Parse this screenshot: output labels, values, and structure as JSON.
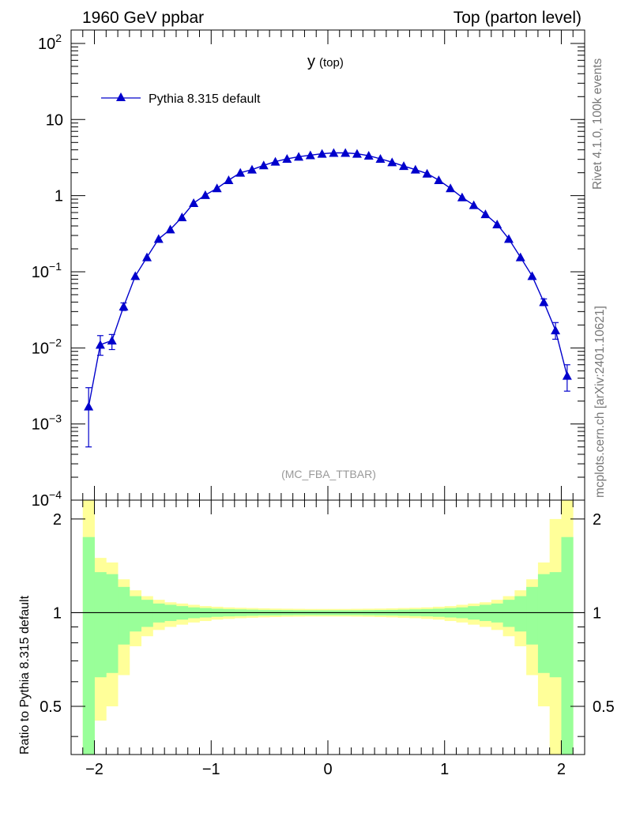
{
  "header": {
    "left": "1960 GeV ppbar",
    "right": "Top (parton level)"
  },
  "side_labels": {
    "rivet": "Rivet 4.1.0,  100k events",
    "mcplots": "mcplots.cern.ch [arXiv:2401.10621]"
  },
  "chart_data": [
    {
      "panel": "main",
      "type": "line",
      "title": "y",
      "title_sub": "(top)",
      "analysis_label": "(MC_FBA_TTBAR)",
      "yscale": "log",
      "ylim": [
        0.0001,
        150
      ],
      "xlim": [
        -2.2,
        2.2
      ],
      "ytick_labels": [
        "10",
        "2",
        "10",
        "1",
        "10",
        "−1",
        "10",
        "−2",
        "10",
        "−3",
        "10",
        "−4"
      ],
      "ytick_values": [
        100,
        10,
        1,
        0.1,
        0.01,
        0.001,
        0.0001
      ],
      "legend": {
        "label": "Pythia 8.315 default",
        "position": "top-left",
        "color": "#0000cc"
      },
      "series": [
        {
          "name": "Pythia 8.315 default",
          "color": "#0000cc",
          "marker": "triangle",
          "x": [
            -2.05,
            -1.95,
            -1.85,
            -1.75,
            -1.65,
            -1.55,
            -1.45,
            -1.35,
            -1.25,
            -1.15,
            -1.05,
            -0.95,
            -0.85,
            -0.75,
            -0.65,
            -0.55,
            -0.45,
            -0.35,
            -0.25,
            -0.15,
            -0.05,
            0.05,
            0.15,
            0.25,
            0.35,
            0.45,
            0.55,
            0.65,
            0.75,
            0.85,
            0.95,
            1.05,
            1.15,
            1.25,
            1.35,
            1.45,
            1.55,
            1.65,
            1.75,
            1.85,
            1.95,
            2.05
          ],
          "y": [
            0.0017,
            0.011,
            0.0125,
            0.035,
            0.088,
            0.155,
            0.27,
            0.36,
            0.52,
            0.8,
            1.02,
            1.25,
            1.6,
            2.0,
            2.2,
            2.5,
            2.8,
            3.05,
            3.25,
            3.4,
            3.55,
            3.65,
            3.65,
            3.55,
            3.35,
            3.05,
            2.75,
            2.45,
            2.2,
            1.95,
            1.6,
            1.25,
            0.95,
            0.75,
            0.57,
            0.42,
            0.27,
            0.155,
            0.088,
            0.04,
            0.017,
            0.0043
          ],
          "yerr_low": [
            0.0012,
            0.003,
            0.003,
            0.004,
            0.006,
            0.009,
            0.013,
            0.016,
            0.02,
            0.025,
            0.03,
            0.035,
            0.04,
            0.045,
            0.05,
            0.05,
            0.055,
            0.06,
            0.06,
            0.06,
            0.06,
            0.06,
            0.06,
            0.06,
            0.06,
            0.055,
            0.05,
            0.05,
            0.045,
            0.045,
            0.04,
            0.035,
            0.03,
            0.025,
            0.02,
            0.016,
            0.013,
            0.009,
            0.006,
            0.004,
            0.004,
            0.0016
          ],
          "yerr_high": [
            0.0013,
            0.0035,
            0.0025,
            0.004,
            0.006,
            0.009,
            0.013,
            0.016,
            0.02,
            0.025,
            0.03,
            0.035,
            0.04,
            0.045,
            0.05,
            0.05,
            0.055,
            0.06,
            0.06,
            0.06,
            0.06,
            0.06,
            0.06,
            0.06,
            0.06,
            0.055,
            0.05,
            0.05,
            0.045,
            0.045,
            0.04,
            0.035,
            0.03,
            0.025,
            0.02,
            0.016,
            0.013,
            0.009,
            0.006,
            0.004,
            0.0045,
            0.0017
          ]
        }
      ]
    },
    {
      "panel": "ratio",
      "type": "area",
      "ylabel": "Ratio to Pythia 8.315 default",
      "yscale": "log",
      "ylim": [
        0.35,
        2.3
      ],
      "xlim": [
        -2.2,
        2.2
      ],
      "xtick_labels": [
        "−2",
        "−1",
        "0",
        "1",
        "2"
      ],
      "xtick_values": [
        -2,
        -1,
        0,
        1,
        2
      ],
      "ytick_labels": [
        "2",
        "1",
        "0.5"
      ],
      "ytick_values": [
        2,
        1,
        0.5
      ],
      "reference_line": 1,
      "band_bins": [
        -2.1,
        -2.0,
        -1.9,
        -1.8,
        -1.7,
        -1.6,
        -1.5,
        -1.4,
        -1.3,
        -1.2,
        -1.1,
        -1.0,
        -0.9,
        -0.8,
        -0.7,
        -0.6,
        -0.5,
        -0.4,
        -0.3,
        -0.2,
        -0.1,
        0.0,
        0.1,
        0.2,
        0.3,
        0.4,
        0.5,
        0.6,
        0.7,
        0.8,
        0.9,
        1.0,
        1.1,
        1.2,
        1.3,
        1.4,
        1.5,
        1.6,
        1.7,
        1.8,
        1.9,
        2.0,
        2.1
      ],
      "stat_band": {
        "color": "#99ff99",
        "up": [
          1.75,
          1.35,
          1.33,
          1.21,
          1.13,
          1.1,
          1.07,
          1.06,
          1.05,
          1.04,
          1.035,
          1.03,
          1.027,
          1.025,
          1.023,
          1.021,
          1.02,
          1.019,
          1.018,
          1.018,
          1.018,
          1.018,
          1.018,
          1.018,
          1.019,
          1.02,
          1.021,
          1.023,
          1.025,
          1.027,
          1.03,
          1.035,
          1.04,
          1.05,
          1.06,
          1.07,
          1.1,
          1.13,
          1.21,
          1.33,
          1.35,
          1.75
        ],
        "down": [
          0.3,
          0.62,
          0.64,
          0.79,
          0.87,
          0.9,
          0.93,
          0.94,
          0.95,
          0.96,
          0.965,
          0.97,
          0.973,
          0.975,
          0.977,
          0.979,
          0.98,
          0.981,
          0.982,
          0.982,
          0.982,
          0.982,
          0.982,
          0.982,
          0.981,
          0.98,
          0.979,
          0.977,
          0.975,
          0.973,
          0.97,
          0.965,
          0.96,
          0.95,
          0.94,
          0.93,
          0.9,
          0.87,
          0.79,
          0.64,
          0.62,
          0.3
        ]
      },
      "syst_band": {
        "color": "#ffff99",
        "up": [
          2.5,
          1.5,
          1.45,
          1.28,
          1.18,
          1.13,
          1.1,
          1.08,
          1.07,
          1.06,
          1.05,
          1.045,
          1.04,
          1.037,
          1.035,
          1.033,
          1.031,
          1.03,
          1.029,
          1.028,
          1.028,
          1.028,
          1.028,
          1.029,
          1.03,
          1.031,
          1.033,
          1.035,
          1.037,
          1.04,
          1.045,
          1.05,
          1.06,
          1.07,
          1.08,
          1.1,
          1.13,
          1.18,
          1.28,
          1.45,
          2.0,
          2.5
        ],
        "down": [
          0.3,
          0.45,
          0.5,
          0.63,
          0.78,
          0.84,
          0.88,
          0.9,
          0.915,
          0.93,
          0.94,
          0.95,
          0.955,
          0.96,
          0.963,
          0.966,
          0.968,
          0.97,
          0.971,
          0.972,
          0.972,
          0.972,
          0.972,
          0.971,
          0.97,
          0.968,
          0.966,
          0.963,
          0.96,
          0.955,
          0.95,
          0.94,
          0.93,
          0.915,
          0.9,
          0.88,
          0.84,
          0.78,
          0.63,
          0.5,
          0.3,
          0.3
        ]
      }
    }
  ]
}
